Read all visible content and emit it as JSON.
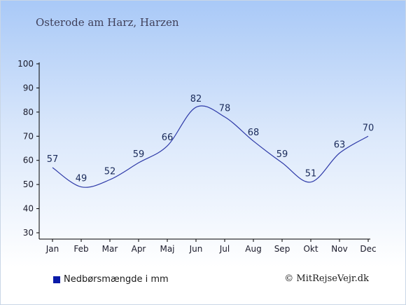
{
  "chart_data": {
    "type": "line",
    "title": "Osterode am Harz, Harzen",
    "categories": [
      "Jan",
      "Feb",
      "Mar",
      "Apr",
      "Maj",
      "Jun",
      "Jul",
      "Aug",
      "Sep",
      "Okt",
      "Nov",
      "Dec"
    ],
    "series": [
      {
        "name": "Nedbørsmængde i mm",
        "values": [
          57,
          49,
          52,
          59,
          66,
          82,
          78,
          68,
          59,
          51,
          63,
          70
        ],
        "color": "#2e3aa8"
      }
    ],
    "ylim": [
      30,
      100
    ],
    "yticks": [
      "30",
      "40",
      "50",
      "60",
      "70",
      "80",
      "90",
      "100"
    ],
    "grid": false,
    "legend": "bottom-left",
    "legend_marker_color": "#0a1aa8"
  },
  "copyright": "© MitRejseVejr.dk"
}
